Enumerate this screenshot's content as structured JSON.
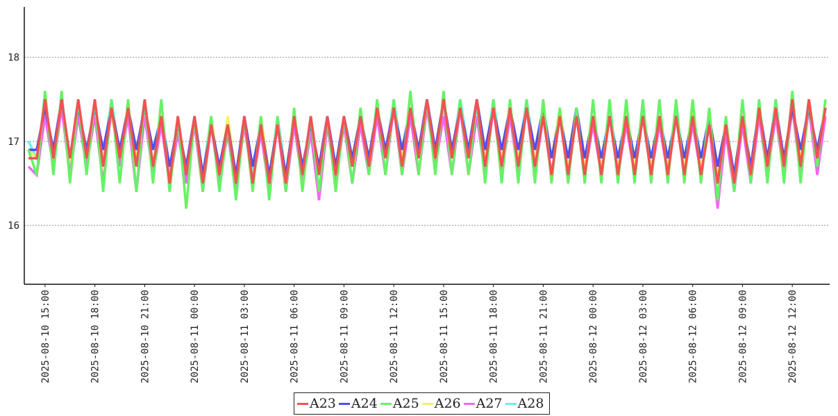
{
  "chart_data": {
    "type": "line",
    "title": "",
    "xlabel": "",
    "ylabel": "",
    "ylim": [
      15.3,
      18.6
    ],
    "yticks": [
      16,
      17,
      18
    ],
    "grid": "horizontal dotted",
    "legend_position": "bottom-center",
    "x_range": [
      "2025-08-10 13:45",
      "2025-08-12 14:15"
    ],
    "xticks": [
      "2025-08-10 15:00",
      "2025-08-10 18:00",
      "2025-08-10 21:00",
      "2025-08-11 00:00",
      "2025-08-11 03:00",
      "2025-08-11 06:00",
      "2025-08-11 09:00",
      "2025-08-11 12:00",
      "2025-08-11 15:00",
      "2025-08-11 18:00",
      "2025-08-11 21:00",
      "2025-08-12 00:00",
      "2025-08-12 03:00",
      "2025-08-12 06:00",
      "2025-08-12 09:00",
      "2025-08-12 12:00"
    ],
    "x": [
      "2025-08-10 14:00",
      "2025-08-10 14:30",
      "2025-08-10 15:00",
      "2025-08-10 15:30",
      "2025-08-10 16:00",
      "2025-08-10 16:30",
      "2025-08-10 17:00",
      "2025-08-10 17:30",
      "2025-08-10 18:00",
      "2025-08-10 18:30",
      "2025-08-10 19:00",
      "2025-08-10 19:30",
      "2025-08-10 20:00",
      "2025-08-10 20:30",
      "2025-08-10 21:00",
      "2025-08-10 21:30",
      "2025-08-10 22:00",
      "2025-08-10 22:30",
      "2025-08-10 23:00",
      "2025-08-10 23:30",
      "2025-08-11 00:00",
      "2025-08-11 00:30",
      "2025-08-11 01:00",
      "2025-08-11 01:30",
      "2025-08-11 02:00",
      "2025-08-11 02:30",
      "2025-08-11 03:00",
      "2025-08-11 03:30",
      "2025-08-11 04:00",
      "2025-08-11 04:30",
      "2025-08-11 05:00",
      "2025-08-11 05:30",
      "2025-08-11 06:00",
      "2025-08-11 06:30",
      "2025-08-11 07:00",
      "2025-08-11 07:30",
      "2025-08-11 08:00",
      "2025-08-11 08:30",
      "2025-08-11 09:00",
      "2025-08-11 09:30",
      "2025-08-11 10:00",
      "2025-08-11 10:30",
      "2025-08-11 11:00",
      "2025-08-11 11:30",
      "2025-08-11 12:00",
      "2025-08-11 12:30",
      "2025-08-11 13:00",
      "2025-08-11 13:30",
      "2025-08-11 14:00",
      "2025-08-11 14:30",
      "2025-08-11 15:00",
      "2025-08-11 15:30",
      "2025-08-11 16:00",
      "2025-08-11 16:30",
      "2025-08-11 17:00",
      "2025-08-11 17:30",
      "2025-08-11 18:00",
      "2025-08-11 18:30",
      "2025-08-11 19:00",
      "2025-08-11 19:30",
      "2025-08-11 20:00",
      "2025-08-11 20:30",
      "2025-08-11 21:00",
      "2025-08-11 21:30",
      "2025-08-11 22:00",
      "2025-08-11 22:30",
      "2025-08-11 23:00",
      "2025-08-11 23:30",
      "2025-08-12 00:00",
      "2025-08-12 00:30",
      "2025-08-12 01:00",
      "2025-08-12 01:30",
      "2025-08-12 02:00",
      "2025-08-12 02:30",
      "2025-08-12 03:00",
      "2025-08-12 03:30",
      "2025-08-12 04:00",
      "2025-08-12 04:30",
      "2025-08-12 05:00",
      "2025-08-12 05:30",
      "2025-08-12 06:00",
      "2025-08-12 06:30",
      "2025-08-12 07:00",
      "2025-08-12 07:30",
      "2025-08-12 08:00",
      "2025-08-12 08:30",
      "2025-08-12 09:00",
      "2025-08-12 09:30",
      "2025-08-12 10:00",
      "2025-08-12 10:30",
      "2025-08-12 11:00",
      "2025-08-12 11:30",
      "2025-08-12 12:00",
      "2025-08-12 12:30",
      "2025-08-12 13:00",
      "2025-08-12 13:30",
      "2025-08-12 14:00"
    ],
    "series": [
      {
        "name": "A28",
        "color": "#66f2f2",
        "values": [
          17.0,
          16.8,
          17.5,
          16.8,
          17.4,
          16.8,
          17.5,
          16.7,
          17.4,
          16.8,
          17.5,
          16.8,
          17.4,
          16.8,
          17.5,
          16.7,
          17.3,
          16.6,
          17.3,
          16.5,
          17.3,
          16.6,
          17.3,
          16.6,
          17.2,
          16.5,
          17.3,
          16.6,
          17.2,
          16.5,
          17.3,
          16.6,
          17.3,
          16.6,
          17.2,
          16.7,
          17.3,
          16.6,
          17.3,
          16.7,
          17.3,
          16.7,
          17.4,
          16.8,
          17.5,
          16.8,
          17.4,
          16.8,
          17.5,
          16.9,
          17.4,
          16.8,
          17.5,
          16.9,
          17.4,
          16.8,
          17.5,
          16.8,
          17.4,
          16.8,
          17.5,
          16.8,
          17.4,
          16.8,
          17.3,
          16.7,
          17.4,
          16.7,
          17.3,
          16.7,
          17.4,
          16.7,
          17.3,
          16.7,
          17.4,
          16.7,
          17.3,
          16.7,
          17.4,
          16.7,
          17.3,
          16.7,
          17.3,
          16.6,
          17.2,
          16.5,
          17.3,
          16.6,
          17.4,
          16.7,
          17.5,
          16.7,
          17.4,
          16.8,
          17.5,
          16.8,
          17.4
        ]
      },
      {
        "name": "A26",
        "color": "#f2f266",
        "values": [
          16.9,
          16.8,
          17.4,
          16.8,
          17.5,
          16.7,
          17.4,
          16.8,
          17.4,
          16.8,
          17.3,
          16.8,
          17.4,
          16.8,
          17.4,
          16.7,
          17.3,
          16.5,
          17.2,
          16.6,
          17.3,
          16.5,
          17.3,
          16.6,
          17.3,
          16.6,
          17.2,
          16.5,
          17.3,
          16.6,
          17.2,
          16.6,
          17.3,
          16.6,
          17.3,
          16.6,
          17.2,
          16.6,
          17.3,
          16.7,
          17.3,
          16.7,
          17.4,
          16.8,
          17.4,
          16.8,
          17.4,
          16.8,
          17.5,
          16.8,
          17.5,
          16.8,
          17.4,
          16.8,
          17.5,
          16.8,
          17.4,
          16.8,
          17.4,
          16.8,
          17.4,
          16.8,
          17.4,
          16.8,
          17.4,
          16.7,
          17.4,
          16.7,
          17.3,
          16.7,
          17.3,
          16.7,
          17.4,
          16.7,
          17.3,
          16.7,
          17.3,
          16.7,
          17.3,
          16.7,
          17.4,
          16.7,
          17.3,
          16.6,
          17.2,
          16.5,
          17.3,
          16.6,
          17.4,
          16.7,
          17.4,
          16.7,
          17.4,
          16.8,
          17.4,
          16.8,
          17.4
        ]
      },
      {
        "name": "A27",
        "color": "#f266f2",
        "values": [
          16.7,
          16.6,
          17.3,
          16.7,
          17.4,
          16.6,
          17.3,
          16.7,
          17.3,
          16.5,
          17.4,
          16.7,
          17.3,
          16.4,
          17.3,
          16.6,
          17.2,
          16.5,
          17.1,
          16.5,
          17.2,
          16.4,
          17.2,
          16.5,
          17.1,
          16.4,
          17.2,
          16.5,
          17.1,
          16.4,
          17.2,
          16.4,
          17.2,
          16.5,
          17.1,
          16.3,
          17.2,
          16.5,
          17.2,
          16.5,
          17.2,
          16.6,
          17.3,
          16.6,
          17.4,
          16.6,
          17.3,
          16.6,
          17.4,
          16.7,
          17.3,
          16.6,
          17.4,
          16.6,
          17.3,
          16.6,
          17.4,
          16.6,
          17.3,
          16.6,
          17.4,
          16.6,
          17.3,
          16.6,
          17.3,
          16.6,
          17.3,
          16.6,
          17.2,
          16.6,
          17.3,
          16.6,
          17.2,
          16.6,
          17.3,
          16.6,
          17.2,
          16.6,
          17.3,
          16.6,
          17.2,
          16.6,
          17.2,
          16.2,
          17.1,
          16.4,
          17.2,
          16.5,
          17.3,
          16.6,
          17.3,
          16.6,
          17.4,
          16.6,
          17.4,
          16.6,
          17.3
        ]
      },
      {
        "name": "A24",
        "color": "#5050e6",
        "values": [
          16.9,
          16.9,
          17.4,
          16.9,
          17.5,
          16.8,
          17.4,
          16.9,
          17.4,
          16.9,
          17.4,
          16.9,
          17.4,
          16.9,
          17.4,
          16.9,
          17.3,
          16.7,
          17.2,
          16.7,
          17.3,
          16.6,
          17.2,
          16.7,
          17.2,
          16.6,
          17.3,
          16.7,
          17.2,
          16.6,
          17.2,
          16.6,
          17.3,
          16.7,
          17.2,
          16.7,
          17.3,
          16.7,
          17.3,
          16.8,
          17.3,
          16.8,
          17.4,
          16.9,
          17.4,
          16.9,
          17.4,
          16.9,
          17.5,
          16.9,
          17.5,
          16.9,
          17.4,
          16.9,
          17.5,
          16.9,
          17.4,
          16.9,
          17.4,
          16.9,
          17.4,
          16.9,
          17.4,
          16.8,
          17.3,
          16.8,
          17.4,
          16.8,
          17.3,
          16.8,
          17.3,
          16.8,
          17.3,
          16.8,
          17.3,
          16.8,
          17.3,
          16.8,
          17.3,
          16.8,
          17.3,
          16.8,
          17.3,
          16.7,
          17.2,
          16.6,
          17.3,
          16.7,
          17.4,
          16.8,
          17.4,
          16.8,
          17.4,
          16.9,
          17.4,
          16.9,
          17.4
        ]
      },
      {
        "name": "A25",
        "color": "#66f266",
        "values": [
          16.9,
          16.6,
          17.6,
          16.6,
          17.6,
          16.5,
          17.5,
          16.6,
          17.5,
          16.4,
          17.5,
          16.5,
          17.5,
          16.4,
          17.5,
          16.5,
          17.5,
          16.4,
          17.3,
          16.2,
          17.3,
          16.4,
          17.3,
          16.4,
          17.2,
          16.3,
          17.3,
          16.4,
          17.3,
          16.3,
          17.3,
          16.4,
          17.4,
          16.4,
          17.3,
          16.4,
          17.3,
          16.4,
          17.3,
          16.5,
          17.4,
          16.6,
          17.5,
          16.6,
          17.5,
          16.6,
          17.6,
          16.6,
          17.5,
          16.6,
          17.6,
          16.6,
          17.5,
          16.6,
          17.5,
          16.5,
          17.5,
          16.5,
          17.5,
          16.5,
          17.5,
          16.5,
          17.5,
          16.5,
          17.4,
          16.5,
          17.4,
          16.5,
          17.5,
          16.5,
          17.5,
          16.5,
          17.5,
          16.5,
          17.5,
          16.5,
          17.5,
          16.5,
          17.5,
          16.5,
          17.5,
          16.5,
          17.4,
          16.3,
          17.3,
          16.4,
          17.5,
          16.5,
          17.5,
          16.5,
          17.5,
          16.5,
          17.6,
          16.5,
          17.5,
          16.7,
          17.5
        ]
      },
      {
        "name": "A23",
        "color": "#f25252",
        "values": [
          16.8,
          16.8,
          17.5,
          16.8,
          17.5,
          16.8,
          17.5,
          16.8,
          17.5,
          16.7,
          17.4,
          16.8,
          17.4,
          16.7,
          17.5,
          16.7,
          17.3,
          16.5,
          17.3,
          16.6,
          17.3,
          16.5,
          17.2,
          16.6,
          17.2,
          16.5,
          17.3,
          16.5,
          17.2,
          16.5,
          17.2,
          16.5,
          17.3,
          16.6,
          17.3,
          16.6,
          17.3,
          16.6,
          17.3,
          16.7,
          17.3,
          16.7,
          17.4,
          16.8,
          17.4,
          16.7,
          17.4,
          16.8,
          17.5,
          16.8,
          17.5,
          16.8,
          17.4,
          16.8,
          17.5,
          16.7,
          17.4,
          16.7,
          17.4,
          16.7,
          17.4,
          16.7,
          17.3,
          16.6,
          17.3,
          16.6,
          17.3,
          16.6,
          17.3,
          16.6,
          17.3,
          16.6,
          17.3,
          16.6,
          17.3,
          16.6,
          17.3,
          16.6,
          17.3,
          16.6,
          17.3,
          16.6,
          17.2,
          16.5,
          17.2,
          16.5,
          17.3,
          16.6,
          17.4,
          16.7,
          17.4,
          16.7,
          17.5,
          16.7,
          17.5,
          16.8,
          17.4
        ]
      }
    ]
  },
  "legend": [
    {
      "name": "A23",
      "color": "#f25252"
    },
    {
      "name": "A24",
      "color": "#5050e6"
    },
    {
      "name": "A25",
      "color": "#66f266"
    },
    {
      "name": "A26",
      "color": "#f2f266"
    },
    {
      "name": "A27",
      "color": "#f266f2"
    },
    {
      "name": "A28",
      "color": "#66f2f2"
    }
  ]
}
